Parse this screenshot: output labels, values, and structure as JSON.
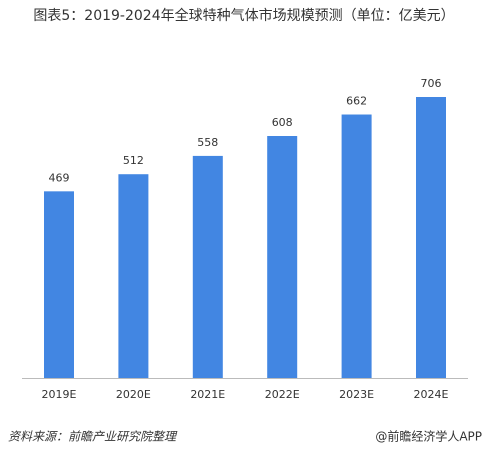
{
  "chart_data": {
    "type": "bar",
    "title": "图表5：2019-2024年全球特种气体市场规模预测（单位：亿美元）",
    "categories": [
      "2019E",
      "2020E",
      "2021E",
      "2022E",
      "2023E",
      "2024E"
    ],
    "values": [
      469,
      512,
      558,
      608,
      662,
      706
    ],
    "color": "#4286e2",
    "source": "资料来源：前瞻产业研究院整理",
    "credit": "@前瞻经济学人APP"
  }
}
